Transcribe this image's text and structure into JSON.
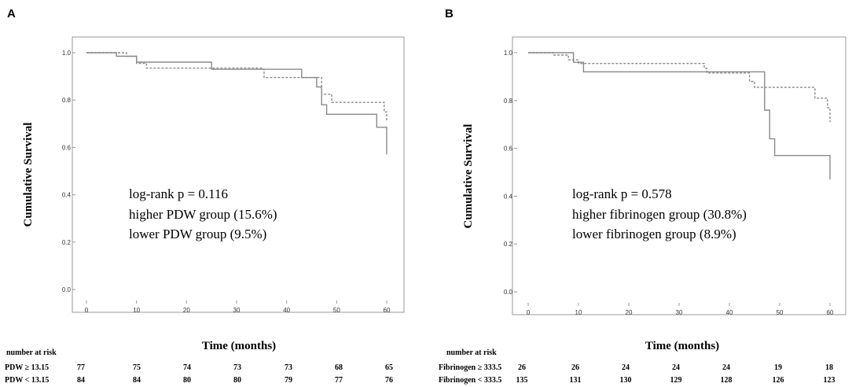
{
  "chart_data": [
    {
      "type": "line",
      "subtype": "kaplan-meier",
      "panel_label": "A",
      "xlabel": "Time (months)",
      "ylabel": "Cumulative Survival",
      "xlim": [
        -3,
        62
      ],
      "ylim": [
        -0.05,
        1.1
      ],
      "x_ticks": [
        0,
        10,
        20,
        30,
        40,
        50,
        60
      ],
      "y_ticks": [
        0.0,
        0.2,
        0.4,
        0.6,
        0.8,
        1.0
      ],
      "y_tick_labels": [
        "0.0",
        "0.2",
        "0.4",
        "0.6",
        "0.8",
        "1.0"
      ],
      "annotations": [
        "log-rank p = 0.116",
        "higher PDW group (15.6%)",
        "lower PDW group (9.5%)"
      ],
      "series": [
        {
          "name": "higher PDW group",
          "style": "solid",
          "color": "#8a8a8a",
          "steps": [
            [
              0,
              1.0
            ],
            [
              6,
              0.985
            ],
            [
              10,
              0.96
            ],
            [
              12,
              0.96
            ],
            [
              25,
              0.93
            ],
            [
              43,
              0.895
            ],
            [
              46,
              0.855
            ],
            [
              47,
              0.78
            ],
            [
              48,
              0.74
            ],
            [
              58,
              0.685
            ],
            [
              60,
              0.57
            ]
          ]
        },
        {
          "name": "lower PDW group",
          "style": "dashed",
          "color": "#8a8a8a",
          "steps": [
            [
              0,
              1.0
            ],
            [
              8,
              0.985
            ],
            [
              10,
              0.955
            ],
            [
              12,
              0.935
            ],
            [
              35,
              0.93
            ],
            [
              35.5,
              0.895
            ],
            [
              47,
              0.825
            ],
            [
              49,
              0.79
            ],
            [
              59.5,
              0.75
            ],
            [
              60,
              0.71
            ]
          ]
        }
      ],
      "risk_table": {
        "title": "number at risk",
        "time_points": [
          0,
          10,
          20,
          30,
          40,
          50,
          60
        ],
        "rows": [
          {
            "label": "PDW ≥ 13.15",
            "values": [
              "77",
              "75",
              "74",
              "73",
              "73",
              "68",
              "65"
            ]
          },
          {
            "label": "PDW < 13.15",
            "values": [
              "84",
              "84",
              "80",
              "80",
              "79",
              "77",
              "76"
            ]
          }
        ]
      }
    },
    {
      "type": "line",
      "subtype": "kaplan-meier",
      "panel_label": "B",
      "xlabel": "Time (months)",
      "ylabel": "Cumulative Survival",
      "xlim": [
        -3,
        62
      ],
      "ylim": [
        -0.05,
        1.1
      ],
      "x_ticks": [
        0,
        10,
        20,
        30,
        40,
        50,
        60
      ],
      "y_ticks": [
        0.0,
        0.2,
        0.4,
        0.6,
        0.8,
        1.0
      ],
      "y_tick_labels": [
        "0.0",
        "0.2",
        "0.4",
        "0.6",
        "0.8",
        "1.0"
      ],
      "annotations": [
        "log-rank p = 0.578",
        "higher fibrinogen group (30.8%)",
        "lower fibrinogen group (8.9%)"
      ],
      "series": [
        {
          "name": "higher fibrinogen group",
          "style": "solid",
          "color": "#8a8a8a",
          "steps": [
            [
              0,
              1.0
            ],
            [
              9,
              0.96
            ],
            [
              11,
              0.92
            ],
            [
              44,
              0.92
            ],
            [
              47,
              0.76
            ],
            [
              48,
              0.64
            ],
            [
              49,
              0.57
            ],
            [
              60,
              0.47
            ]
          ]
        },
        {
          "name": "lower fibrinogen group",
          "style": "dashed",
          "color": "#8a8a8a",
          "steps": [
            [
              0,
              1.0
            ],
            [
              5,
              0.99
            ],
            [
              8,
              0.97
            ],
            [
              10,
              0.955
            ],
            [
              35,
              0.935
            ],
            [
              35.5,
              0.915
            ],
            [
              44,
              0.88
            ],
            [
              45,
              0.855
            ],
            [
              57,
              0.81
            ],
            [
              59.5,
              0.77
            ],
            [
              60,
              0.71
            ]
          ]
        }
      ],
      "risk_table": {
        "title": "number at risk",
        "time_points": [
          0,
          10,
          20,
          30,
          40,
          50,
          60
        ],
        "rows": [
          {
            "label": "Fibrinogen ≥ 333.5",
            "values": [
              "26",
              "26",
              "24",
              "24",
              "24",
              "19",
              "18"
            ]
          },
          {
            "label": "Fibrinogen < 333.5",
            "values": [
              "135",
              "131",
              "130",
              "129",
              "128",
              "126",
              "123"
            ]
          }
        ]
      }
    }
  ]
}
